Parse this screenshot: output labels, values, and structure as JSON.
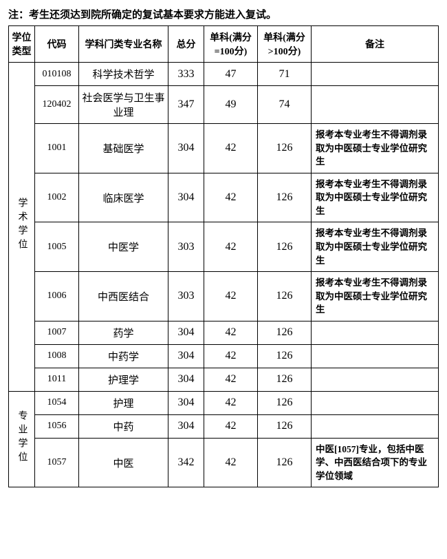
{
  "note_text": "注：考生还须达到院所确定的复试基本要求方能进入复试。",
  "headers": {
    "type": "学位类型",
    "code": "代码",
    "major": "学科门类专业名称",
    "total": "总分",
    "sub1": "单科(满分=100分)",
    "sub2": "单科(满分>100分)",
    "remark": "备注"
  },
  "groups": [
    {
      "label": "学术学位",
      "rows": [
        {
          "code": "010108",
          "major": "科学技术哲学",
          "total": "333",
          "sub1": "47",
          "sub2": "71",
          "remark": ""
        },
        {
          "code": "120402",
          "major": "社会医学与卫生事业理",
          "total": "347",
          "sub1": "49",
          "sub2": "74",
          "remark": ""
        },
        {
          "code": "1001",
          "major": "基础医学",
          "total": "304",
          "sub1": "42",
          "sub2": "126",
          "remark": "报考本专业考生不得调剂录取为中医硕士专业学位研究生"
        },
        {
          "code": "1002",
          "major": "临床医学",
          "total": "304",
          "sub1": "42",
          "sub2": "126",
          "remark": "报考本专业考生不得调剂录取为中医硕士专业学位研究生"
        },
        {
          "code": "1005",
          "major": "中医学",
          "total": "303",
          "sub1": "42",
          "sub2": "126",
          "remark": "报考本专业考生不得调剂录取为中医硕士专业学位研究生"
        },
        {
          "code": "1006",
          "major": "中西医结合",
          "total": "303",
          "sub1": "42",
          "sub2": "126",
          "remark": "报考本专业考生不得调剂录取为中医硕士专业学位研究生"
        },
        {
          "code": "1007",
          "major": "药学",
          "total": "304",
          "sub1": "42",
          "sub2": "126",
          "remark": ""
        },
        {
          "code": "1008",
          "major": "中药学",
          "total": "304",
          "sub1": "42",
          "sub2": "126",
          "remark": ""
        },
        {
          "code": "1011",
          "major": "护理学",
          "total": "304",
          "sub1": "42",
          "sub2": "126",
          "remark": ""
        }
      ]
    },
    {
      "label": "专业学位",
      "rows": [
        {
          "code": "1054",
          "major": "护理",
          "total": "304",
          "sub1": "42",
          "sub2": "126",
          "remark": ""
        },
        {
          "code": "1056",
          "major": "中药",
          "total": "304",
          "sub1": "42",
          "sub2": "126",
          "remark": ""
        },
        {
          "code": "1057",
          "major": "中医",
          "total": "342",
          "sub1": "42",
          "sub2": "126",
          "remark": "中医[1057]专业，包括中医学、中西医结合项下的专业学位领域"
        }
      ]
    }
  ]
}
